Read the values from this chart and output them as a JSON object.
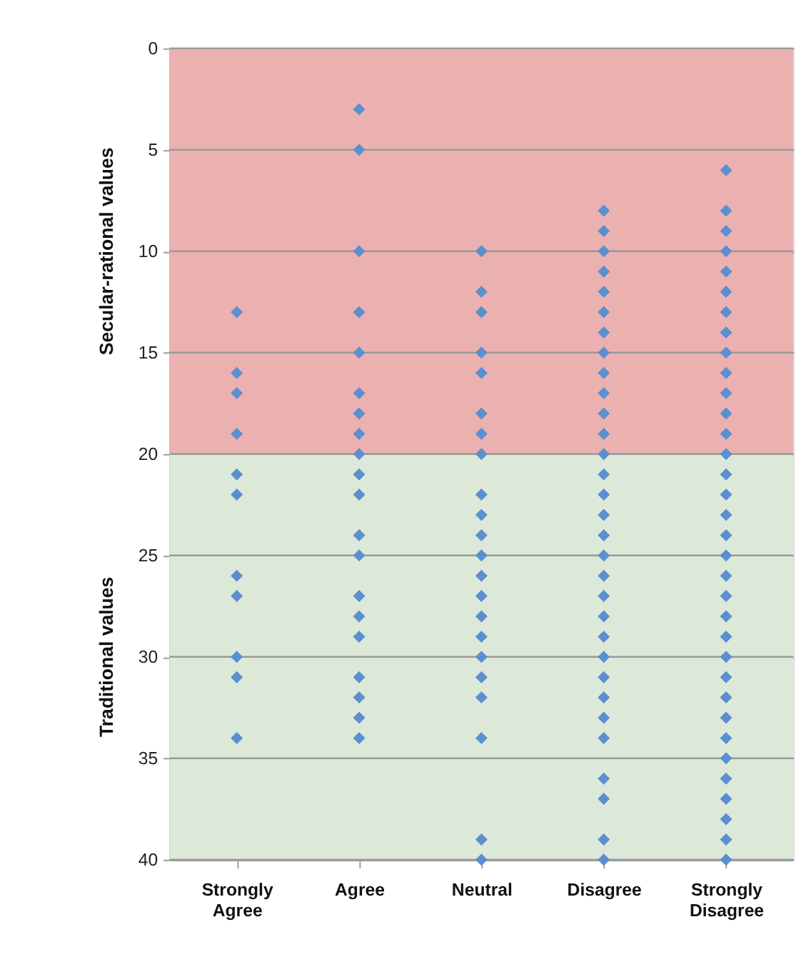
{
  "chart_data": {
    "type": "scatter",
    "categories": [
      "Strongly Agree",
      "Agree",
      "Neutral",
      "Disagree",
      "Strongly Disagree"
    ],
    "series": [
      {
        "color": "#5b8fcf",
        "x": [
          "Strongly Agree",
          "Strongly Agree",
          "Strongly Agree",
          "Strongly Agree",
          "Strongly Agree",
          "Strongly Agree",
          "Strongly Agree",
          "Strongly Agree",
          "Strongly Agree",
          "Strongly Agree",
          "Strongly Agree"
        ],
        "values": [
          13,
          16,
          17,
          19,
          21,
          22,
          26,
          27,
          30,
          31,
          34
        ]
      },
      {
        "color": "#5b8fcf",
        "x": [
          "Agree",
          "Agree",
          "Agree",
          "Agree",
          "Agree",
          "Agree",
          "Agree",
          "Agree",
          "Agree",
          "Agree",
          "Agree",
          "Agree",
          "Agree",
          "Agree",
          "Agree",
          "Agree",
          "Agree",
          "Agree",
          "Agree",
          "Agree"
        ],
        "values": [
          3,
          5,
          10,
          13,
          15,
          17,
          18,
          19,
          20,
          21,
          22,
          24,
          25,
          27,
          28,
          29,
          31,
          32,
          33,
          34
        ]
      },
      {
        "color": "#5b8fcf",
        "x": [
          "Neutral",
          "Neutral",
          "Neutral",
          "Neutral",
          "Neutral",
          "Neutral",
          "Neutral",
          "Neutral",
          "Neutral",
          "Neutral",
          "Neutral",
          "Neutral",
          "Neutral",
          "Neutral",
          "Neutral",
          "Neutral",
          "Neutral",
          "Neutral",
          "Neutral",
          "Neutral",
          "Neutral",
          "Neutral"
        ],
        "values": [
          10,
          12,
          13,
          15,
          16,
          18,
          19,
          20,
          22,
          23,
          24,
          25,
          26,
          27,
          28,
          29,
          30,
          31,
          32,
          34,
          39,
          40
        ]
      },
      {
        "color": "#5b8fcf",
        "x": [
          "Disagree",
          "Disagree",
          "Disagree",
          "Disagree",
          "Disagree",
          "Disagree",
          "Disagree",
          "Disagree",
          "Disagree",
          "Disagree",
          "Disagree",
          "Disagree",
          "Disagree",
          "Disagree",
          "Disagree",
          "Disagree",
          "Disagree",
          "Disagree",
          "Disagree",
          "Disagree",
          "Disagree",
          "Disagree",
          "Disagree",
          "Disagree",
          "Disagree",
          "Disagree",
          "Disagree",
          "Disagree",
          "Disagree",
          "Disagree",
          "Disagree"
        ],
        "values": [
          8,
          9,
          10,
          11,
          12,
          13,
          14,
          15,
          16,
          17,
          18,
          19,
          20,
          21,
          22,
          23,
          24,
          25,
          26,
          27,
          28,
          29,
          30,
          31,
          32,
          33,
          34,
          36,
          37,
          39,
          40
        ]
      },
      {
        "color": "#5b8fcf",
        "x": [
          "Strongly Disagree",
          "Strongly Disagree",
          "Strongly Disagree",
          "Strongly Disagree",
          "Strongly Disagree",
          "Strongly Disagree",
          "Strongly Disagree",
          "Strongly Disagree",
          "Strongly Disagree",
          "Strongly Disagree",
          "Strongly Disagree",
          "Strongly Disagree",
          "Strongly Disagree",
          "Strongly Disagree",
          "Strongly Disagree",
          "Strongly Disagree",
          "Strongly Disagree",
          "Strongly Disagree",
          "Strongly Disagree",
          "Strongly Disagree",
          "Strongly Disagree",
          "Strongly Disagree",
          "Strongly Disagree",
          "Strongly Disagree",
          "Strongly Disagree",
          "Strongly Disagree",
          "Strongly Disagree",
          "Strongly Disagree",
          "Strongly Disagree",
          "Strongly Disagree",
          "Strongly Disagree",
          "Strongly Disagree",
          "Strongly Disagree",
          "Strongly Disagree"
        ],
        "values": [
          6,
          8,
          9,
          10,
          11,
          12,
          13,
          14,
          15,
          16,
          17,
          18,
          19,
          20,
          21,
          22,
          23,
          24,
          25,
          26,
          27,
          28,
          29,
          30,
          31,
          32,
          33,
          34,
          35,
          36,
          37,
          38,
          39,
          40
        ]
      }
    ],
    "ylim": [
      40,
      0
    ],
    "yticks": [
      0,
      5,
      10,
      15,
      20,
      25,
      30,
      35,
      40
    ],
    "bands": [
      {
        "axis": "y",
        "from": 0,
        "to": 20,
        "label": "Secular-rational  values",
        "color": "#ebb1b0"
      },
      {
        "axis": "y",
        "from": 20,
        "to": 40,
        "label": "Traditional values",
        "color": "#dce9d9"
      }
    ],
    "grid": "y",
    "marker": "diamond",
    "legend": false
  }
}
